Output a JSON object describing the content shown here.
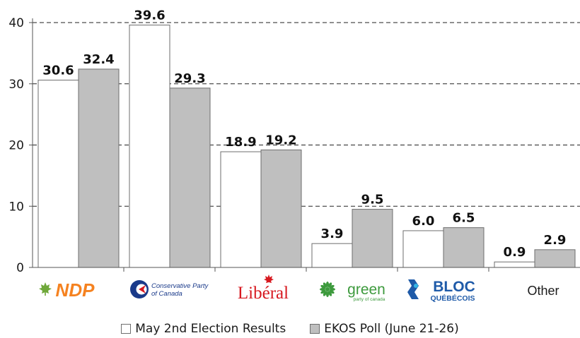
{
  "chart_data": {
    "type": "bar",
    "categories": [
      "NDP",
      "Conservative Party of Canada",
      "Libéral",
      "green",
      "BLOC QUÉBÉCOIS",
      "Other"
    ],
    "series": [
      {
        "name": "May 2nd Election Results",
        "values": [
          30.6,
          39.6,
          18.9,
          3.9,
          6.0,
          0.9
        ],
        "color": "#ffffff"
      },
      {
        "name": "EKOS Poll (June 21-26)",
        "values": [
          32.4,
          29.3,
          19.2,
          9.5,
          6.5,
          2.9
        ],
        "color": "#bfbfbf"
      }
    ],
    "value_labels": [
      [
        "30.6",
        "39.6",
        "18.9",
        "3.9",
        "6.0",
        "0.9"
      ],
      [
        "32.4",
        "29.3",
        "19.2",
        "9.5",
        "6.5",
        "2.9"
      ]
    ],
    "yticks": [
      0,
      10,
      20,
      30,
      40
    ],
    "ylim": [
      0,
      40
    ],
    "xlabel": "",
    "ylabel": "",
    "title": "",
    "grid": "horizontal dashed",
    "legend_position": "bottom"
  },
  "logos": {
    "ndp": {
      "text": "NDP",
      "color": "#f58220",
      "leaf_color": "#6fa83a"
    },
    "conservative": {
      "line1": "Conservative Party",
      "line2": "of Canada",
      "color": "#1a3a8a"
    },
    "liberal": {
      "text": "Libéral",
      "color": "#d71920"
    },
    "green": {
      "text": "green",
      "subtext": "party of canada",
      "color": "#3d9a3d"
    },
    "bloc": {
      "line1": "BLOC",
      "line2": "QUÉBÉCOIS",
      "color": "#1e5aa8"
    },
    "other": {
      "text": "Other"
    }
  }
}
